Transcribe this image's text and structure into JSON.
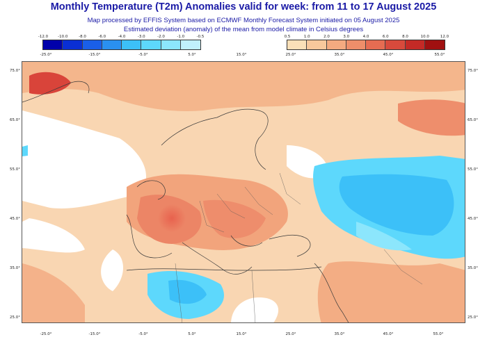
{
  "title": "Monthly Temperature (T2m) Anomalies valid for week: from 11 to 17 August 2025",
  "subtitle_1": "Map processed by EFFIS System based on ECMWF Monthly Forecast System initiated on 05 August 2025",
  "subtitle_2": "Estimated deviation (anomaly) of the mean from model climate in Celsius degrees",
  "legend_cold": {
    "values": [
      "-12.0",
      "-10.0",
      "-8.0",
      "-6.0",
      "-4.0",
      "-3.0",
      "-2.0",
      "-1.0",
      "-0.5"
    ],
    "colors": [
      "#0000aa",
      "#0a2fd4",
      "#1a5fe8",
      "#2a90f0",
      "#3cc0f8",
      "#5dd8fc",
      "#8ce6fc",
      "#c0f0fc"
    ],
    "scale": [
      "-25.0°",
      "-15.0°",
      "-5.0°",
      "5.0°"
    ]
  },
  "legend_warm": {
    "values": [
      "0.5",
      "1.0",
      "2.0",
      "3.0",
      "4.0",
      "6.0",
      "8.0",
      "10.0",
      "12.0"
    ],
    "colors": [
      "#fbe0b8",
      "#f8c89c",
      "#f4aa80",
      "#ee8e6a",
      "#e66c52",
      "#d84a3c",
      "#c42a26",
      "#a01010"
    ],
    "scale": [
      "25.0°",
      "35.0°",
      "45.0°",
      "55.0°"
    ]
  },
  "top_mid_tick": "15.0°",
  "lat_labels": [
    "75.0°",
    "65.0°",
    "55.0°",
    "45.0°",
    "35.0°",
    "25.0°"
  ],
  "lon_labels": [
    "-25.0°",
    "-15.0°",
    "-5.0°",
    "5.0°",
    "15.0°",
    "25.0°",
    "35.0°",
    "45.0°",
    "55.0°"
  ]
}
